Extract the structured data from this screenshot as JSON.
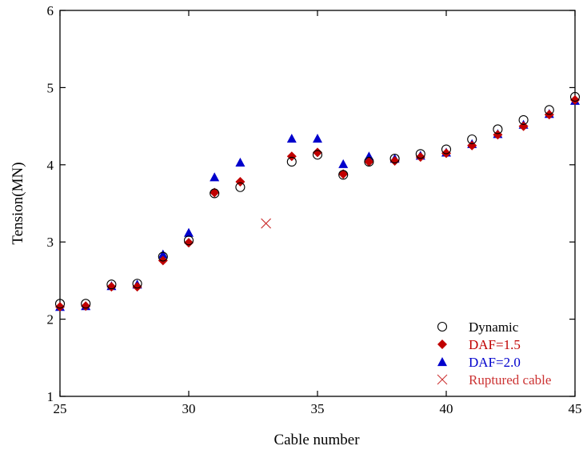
{
  "chart_data": {
    "type": "scatter",
    "xlabel": "Cable number",
    "ylabel": "Tension(MN)",
    "xlim": [
      25,
      45
    ],
    "ylim": [
      1,
      6
    ],
    "xticks": [
      "25",
      "30",
      "35",
      "40",
      "45"
    ],
    "yticks": [
      "1",
      "2",
      "3",
      "4",
      "5",
      "6"
    ],
    "grid": false,
    "legend_position": "bottom-right",
    "series": [
      {
        "name": "Dynamic",
        "marker": "open-circle",
        "color": "#000000",
        "x": [
          25,
          26,
          27,
          28,
          29,
          30,
          31,
          32,
          34,
          35,
          36,
          37,
          38,
          39,
          40,
          41,
          42,
          43,
          44,
          45
        ],
        "y": [
          2.2,
          2.2,
          2.45,
          2.46,
          2.81,
          3.02,
          3.63,
          3.71,
          4.04,
          4.13,
          3.87,
          4.04,
          4.08,
          4.14,
          4.2,
          4.33,
          4.46,
          4.58,
          4.71,
          4.88
        ]
      },
      {
        "name": "DAF=1.5",
        "marker": "diamond",
        "color": "#c00000",
        "x": [
          25,
          26,
          27,
          28,
          29,
          30,
          31,
          32,
          34,
          35,
          36,
          37,
          38,
          39,
          40,
          41,
          42,
          43,
          44,
          45
        ],
        "y": [
          2.16,
          2.17,
          2.42,
          2.42,
          2.76,
          2.99,
          3.64,
          3.78,
          4.11,
          4.16,
          3.88,
          4.04,
          4.05,
          4.1,
          4.15,
          4.25,
          4.39,
          4.5,
          4.65,
          4.84
        ]
      },
      {
        "name": "DAF=2.0",
        "marker": "triangle",
        "color": "#0000cc",
        "x": [
          25,
          26,
          27,
          28,
          29,
          30,
          31,
          32,
          34,
          35,
          36,
          37,
          38,
          39,
          40,
          41,
          42,
          43,
          44,
          45
        ],
        "y": [
          2.16,
          2.17,
          2.43,
          2.45,
          2.84,
          3.12,
          3.84,
          4.03,
          4.34,
          4.34,
          4.01,
          4.11,
          4.08,
          4.12,
          4.16,
          4.27,
          4.4,
          4.52,
          4.66,
          4.83
        ]
      },
      {
        "name": "Ruptured cable",
        "marker": "cross",
        "color": "#cc3333",
        "x": [
          33
        ],
        "y": [
          3.24
        ]
      }
    ]
  }
}
